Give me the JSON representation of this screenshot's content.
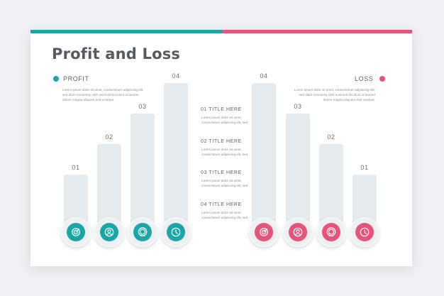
{
  "title": "Profit and Loss",
  "colors": {
    "profit": "#1aa5a6",
    "loss": "#e8537a",
    "bar": "#e6ebef"
  },
  "chart_data": [
    {
      "type": "bar",
      "series_label": "PROFIT",
      "description": "Lorem ipsum dolor sit amet, consectetuer adipiscing elit, sed diam nonummy nibh euismod tincidunt ut laoreet dolore magna aliquam erat volutpat.",
      "categories": [
        "01",
        "02",
        "03",
        "04"
      ],
      "values": [
        1,
        2,
        3,
        4
      ],
      "icons": [
        "target-icon",
        "user-icon",
        "search-icon",
        "clock-icon"
      ]
    },
    {
      "type": "bar",
      "series_label": "LOSS",
      "description": "Lorem ipsum dolor sit amet, consectetuer adipiscing elit, sed diam nonummy nibh euismod tincidunt ut laoreet dolore magna aliquam erat volutpat.",
      "categories": [
        "04",
        "03",
        "02",
        "01"
      ],
      "values": [
        4,
        3,
        2,
        1
      ],
      "icons": [
        "target-icon",
        "user-icon",
        "search-icon",
        "clock-icon"
      ]
    }
  ],
  "middle_items": [
    {
      "title": "01 TITLE HERE",
      "text": "Lorem ipsum dolor sit amet, consectetuer adipiscing elit, sed"
    },
    {
      "title": "02 TITLE HERE",
      "text": "Lorem ipsum dolor sit amet, consectetuer adipiscing elit, sed"
    },
    {
      "title": "03 TITLE HERE",
      "text": "Lorem ipsum dolor sit amet, consectetuer adipiscing elit, sed"
    },
    {
      "title": "04 TITLE HERE",
      "text": "Lorem ipsum dolor sit amet, consectetuer adipiscing elit, sed"
    }
  ]
}
